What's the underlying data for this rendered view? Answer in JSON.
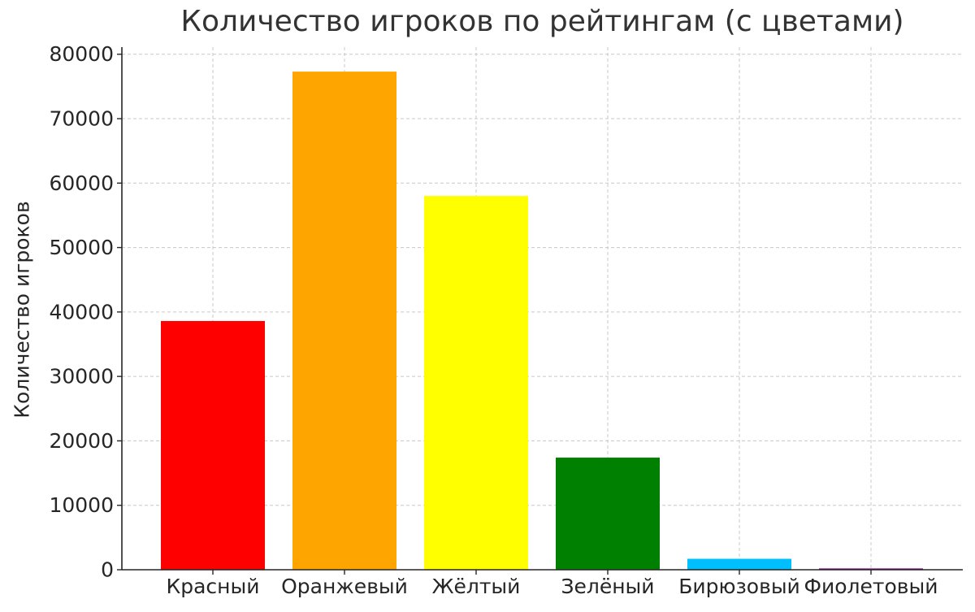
{
  "chart_data": {
    "type": "bar",
    "title": "Количество игроков по рейтингам (с цветами)",
    "xlabel": "",
    "ylabel": "Количество игроков",
    "categories": [
      "Красный",
      "Оранжевый",
      "Жёлтый",
      "Зелёный",
      "Бирюзовый",
      "Фиолетовый"
    ],
    "values": [
      38600,
      77300,
      58000,
      17400,
      1700,
      200
    ],
    "colors": [
      "#ff0000",
      "#ffa500",
      "#ffff00",
      "#008000",
      "#00bfff",
      "#800080"
    ],
    "ylim": [
      0,
      81100
    ],
    "yticks": [
      0,
      10000,
      20000,
      30000,
      40000,
      50000,
      60000,
      70000,
      80000
    ],
    "grid": true,
    "grid_style": "dashed"
  }
}
